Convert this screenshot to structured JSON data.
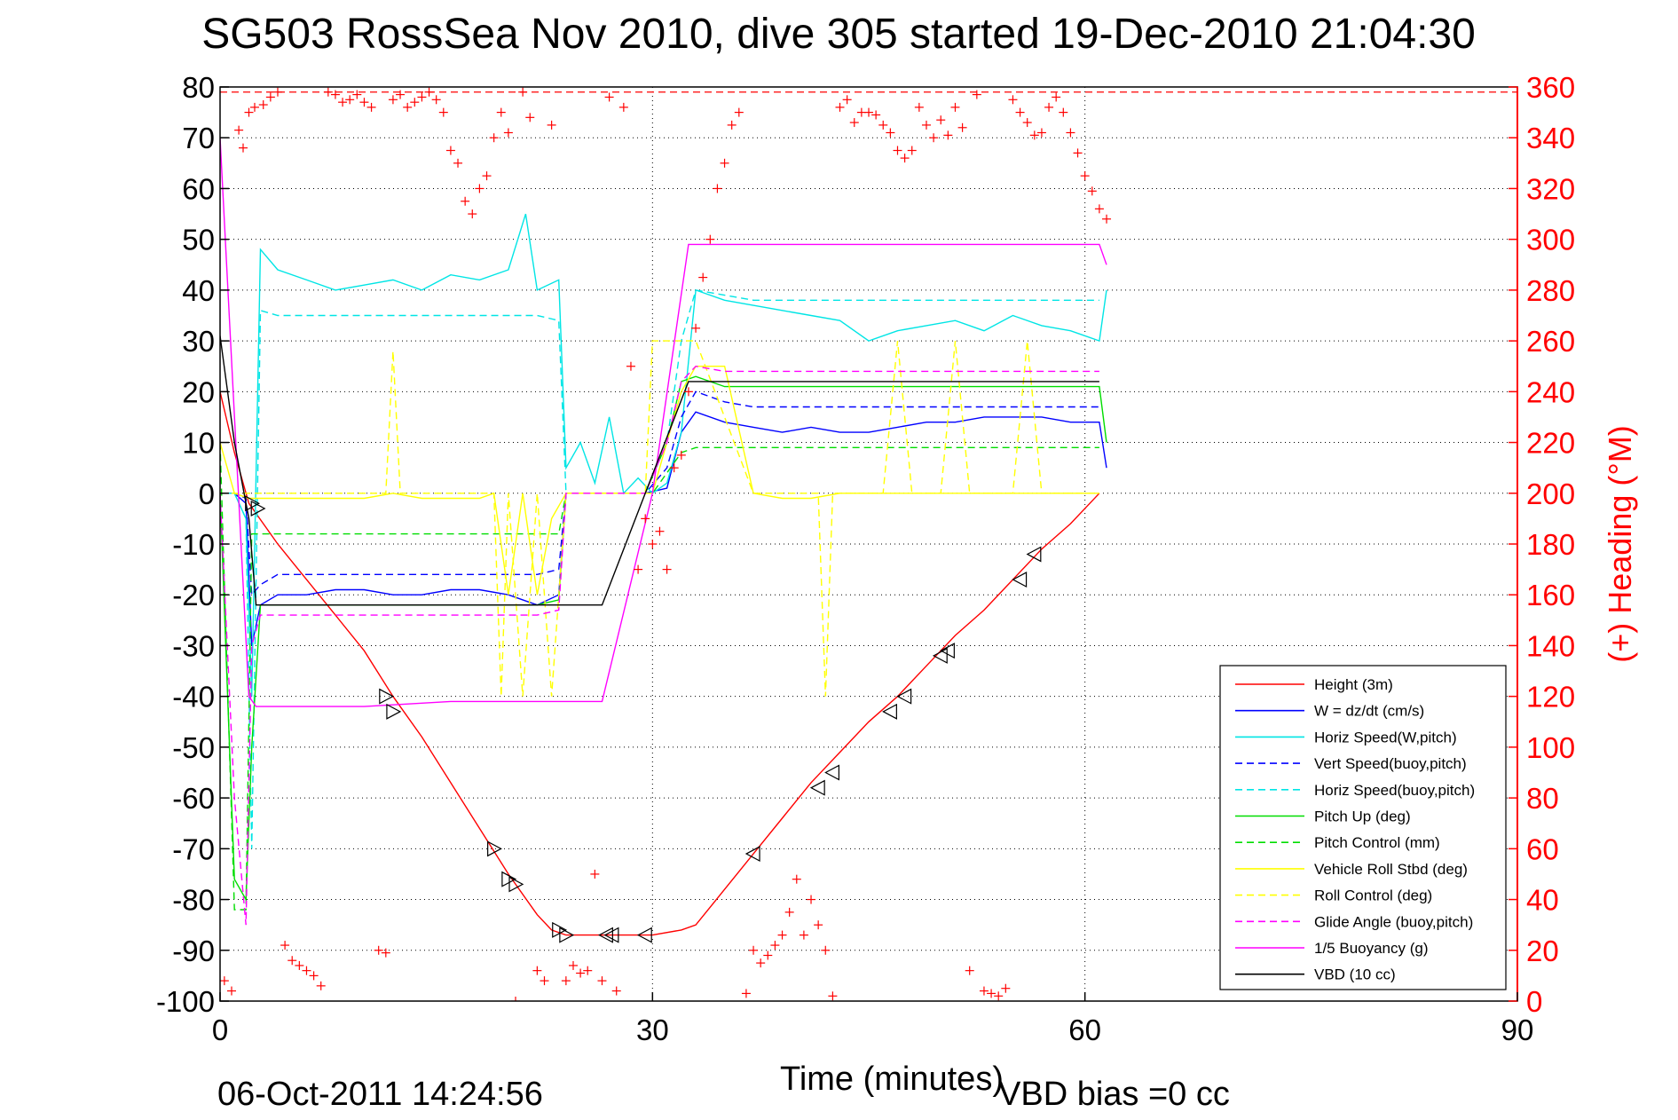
{
  "chart_data": {
    "type": "line",
    "title": "SG503 RossSea Nov 2010, dive 305 started 19-Dec-2010 21:04:30",
    "xlabel": "Time (minutes)",
    "ylabel": "",
    "ylabel_right": "(+) Heading (°M)",
    "footer_date": "06-Oct-2011 14:24:56",
    "footer_bias": "VBD bias =0 cc",
    "xlim": [
      0,
      90
    ],
    "ylim": [
      -100,
      80
    ],
    "ylim_right": [
      0,
      360
    ],
    "xticks": [
      "0",
      "30",
      "60",
      "90"
    ],
    "yticks": [
      "80",
      "70",
      "60",
      "50",
      "40",
      "30",
      "20",
      "10",
      "0",
      "-10",
      "-20",
      "-30",
      "-40",
      "-50",
      "-60",
      "-70",
      "-80",
      "-90",
      "-100"
    ],
    "yticks_right": [
      "360",
      "340",
      "320",
      "300",
      "280",
      "260",
      "240",
      "220",
      "200",
      "180",
      "160",
      "140",
      "120",
      "100",
      "80",
      "60",
      "40",
      "20",
      "0"
    ],
    "grid": true,
    "legend_position": "bottom-right",
    "colors": {
      "red": "#ff0000",
      "blue": "#0000ff",
      "cyan": "#00e5e5",
      "green": "#00dd00",
      "yellow": "#ffff00",
      "magenta": "#ff00ff",
      "black": "#000000"
    },
    "series": [
      {
        "name": "Height (3m)",
        "color": "#ff0000",
        "dash": false,
        "x": [
          0,
          1,
          2,
          4,
          6,
          8,
          10,
          12,
          14,
          16,
          18,
          20,
          22,
          23,
          24,
          26,
          28,
          30,
          32,
          33,
          35,
          37,
          39,
          41,
          43,
          45,
          47,
          49,
          51,
          53,
          55,
          57,
          59,
          61
        ],
        "y": [
          20,
          8,
          -2,
          -10,
          -17,
          -24,
          -31,
          -40,
          -48,
          -57,
          -66,
          -75,
          -83,
          -86,
          -87,
          -87,
          -87,
          -87,
          -86,
          -85,
          -78,
          -71,
          -64,
          -57,
          -51,
          -45,
          -40,
          -34,
          -28,
          -23,
          -17,
          -11,
          -6,
          0
        ]
      },
      {
        "name": "W = dz/dt (cm/s)",
        "color": "#0000ff",
        "dash": false,
        "x": [
          0,
          1,
          1.8,
          2.2,
          2.8,
          4,
          6,
          8,
          10,
          12,
          14,
          16,
          18,
          20,
          22,
          23.5,
          24,
          26,
          28,
          29.5,
          31,
          32,
          33,
          35,
          37,
          39,
          41,
          43,
          45,
          47,
          49,
          51,
          53,
          55,
          57,
          59,
          61,
          61.5
        ],
        "y": [
          0,
          0,
          -2,
          -30,
          -22,
          -20,
          -20,
          -19,
          -19,
          -20,
          -20,
          -19,
          -19,
          -20,
          -22,
          -20,
          0,
          0,
          0,
          0,
          1,
          12,
          16,
          14,
          13,
          12,
          13,
          12,
          12,
          13,
          14,
          14,
          15,
          15,
          15,
          14,
          14,
          5
        ]
      },
      {
        "name": "Horiz Speed(W,pitch)",
        "color": "#00e5e5",
        "dash": false,
        "x": [
          0,
          1,
          1.8,
          2.2,
          2.8,
          4,
          6,
          8,
          10,
          12,
          14,
          16,
          18,
          20,
          21.2,
          22,
          23.5,
          24,
          25,
          26,
          27,
          28,
          29,
          30,
          31,
          32,
          33,
          35,
          37,
          39,
          41,
          43,
          45,
          47,
          49,
          51,
          53,
          55,
          57,
          59,
          61,
          61.5
        ],
        "y": [
          0,
          0,
          -5,
          -40,
          48,
          44,
          42,
          40,
          41,
          42,
          40,
          43,
          42,
          44,
          55,
          40,
          42,
          5,
          10,
          2,
          15,
          0,
          3,
          0,
          2,
          12,
          40,
          38,
          37,
          36,
          35,
          34,
          30,
          32,
          33,
          34,
          32,
          35,
          33,
          32,
          30,
          40
        ]
      },
      {
        "name": "Vert Speed(buoy,pitch)",
        "color": "#0000ff",
        "dash": true,
        "x": [
          0,
          1,
          1.8,
          2.2,
          2.8,
          4,
          6,
          8,
          10,
          12,
          14,
          16,
          18,
          20,
          22,
          23.5,
          24,
          26,
          28,
          29.5,
          31,
          32,
          33,
          35,
          37,
          39,
          41,
          43,
          45,
          47,
          49,
          51,
          53,
          55,
          57,
          59,
          61
        ],
        "y": [
          0,
          0,
          -1,
          -20,
          -18,
          -16,
          -16,
          -16,
          -16,
          -16,
          -16,
          -16,
          -16,
          -16,
          -16,
          -15,
          0,
          0,
          0,
          0,
          5,
          15,
          20,
          18,
          17,
          17,
          17,
          17,
          17,
          17,
          17,
          17,
          17,
          17,
          17,
          17,
          17
        ]
      },
      {
        "name": "Horiz Speed(buoy,pitch)",
        "color": "#00e5e5",
        "dash": true,
        "x": [
          0,
          1,
          1.8,
          2.2,
          2.8,
          4,
          6,
          8,
          10,
          12,
          14,
          16,
          18,
          20,
          22,
          23.5,
          24,
          26,
          28,
          29.5,
          31,
          32,
          33,
          35,
          37,
          39,
          41,
          43,
          45,
          47,
          49,
          51,
          53,
          55,
          57,
          59,
          61
        ],
        "y": [
          0,
          0,
          -5,
          -70,
          36,
          35,
          35,
          35,
          35,
          35,
          35,
          35,
          35,
          35,
          35,
          34,
          0,
          0,
          0,
          0,
          10,
          30,
          40,
          39,
          38,
          38,
          38,
          38,
          38,
          38,
          38,
          38,
          38,
          38,
          38,
          38,
          38
        ]
      },
      {
        "name": "Pitch Up (deg)",
        "color": "#00dd00",
        "dash": false,
        "x": [
          0,
          1,
          1.8,
          2.2,
          2.8,
          4,
          6,
          8,
          10,
          12,
          14,
          16,
          18,
          20,
          22,
          23.5,
          24,
          26,
          28,
          29.5,
          31,
          32,
          33,
          35,
          37,
          39,
          41,
          43,
          45,
          47,
          49,
          51,
          53,
          55,
          57,
          59,
          61,
          61.5
        ],
        "y": [
          0,
          -76,
          -80,
          -50,
          -22,
          -22,
          -22,
          -22,
          -22,
          -22,
          -22,
          -22,
          -22,
          -22,
          -22,
          -21,
          0,
          0,
          0,
          0,
          10,
          22,
          23,
          21,
          21,
          21,
          21,
          21,
          21,
          21,
          21,
          21,
          21,
          21,
          21,
          21,
          21,
          10
        ]
      },
      {
        "name": "Pitch Control (mm)",
        "color": "#00dd00",
        "dash": true,
        "x": [
          0,
          1,
          1.8,
          2.2,
          2.8,
          4,
          10,
          16,
          22,
          23.5,
          24,
          26,
          28,
          30,
          32,
          33,
          40,
          50,
          55,
          61
        ],
        "y": [
          10,
          -82,
          -82,
          -8,
          -8,
          -8,
          -8,
          -8,
          -8,
          -8,
          0,
          0,
          0,
          0,
          8,
          9,
          9,
          9,
          9,
          9
        ]
      },
      {
        "name": "Vehicle Roll Stbd (deg)",
        "color": "#ffff00",
        "dash": false,
        "x": [
          0,
          1,
          2,
          4,
          6,
          8,
          10,
          12,
          14,
          16,
          18,
          19,
          20,
          21,
          22,
          23,
          24,
          26,
          28,
          30,
          32,
          33,
          35,
          37,
          39,
          41,
          43,
          45,
          47,
          49,
          51,
          53,
          55,
          57,
          59,
          61
        ],
        "y": [
          10,
          0,
          -1,
          -1,
          -1,
          -1,
          -1,
          0,
          -1,
          -1,
          -1,
          0,
          -20,
          0,
          -20,
          -5,
          0,
          0,
          0,
          0,
          20,
          25,
          25,
          0,
          -1,
          -1,
          0,
          0,
          0,
          0,
          0,
          0,
          0,
          0,
          0,
          0
        ]
      },
      {
        "name": "Roll Control (deg)",
        "color": "#ffff00",
        "dash": true,
        "x": [
          0,
          1,
          2,
          4,
          6,
          8,
          10,
          11.5,
          12,
          12.5,
          14,
          16,
          18,
          19,
          19.5,
          20,
          21,
          22,
          23,
          24,
          26,
          28,
          29.5,
          30,
          32,
          33,
          37,
          41.5,
          42,
          42.5,
          46,
          47,
          48,
          50,
          51,
          52,
          55,
          56,
          57,
          61
        ],
        "y": [
          0,
          0,
          0,
          0,
          0,
          0,
          0,
          0,
          28,
          0,
          0,
          0,
          0,
          0,
          -40,
          0,
          -40,
          0,
          -40,
          0,
          0,
          0,
          0,
          30,
          30,
          30,
          0,
          0,
          -40,
          0,
          0,
          30,
          0,
          0,
          30,
          0,
          0,
          30,
          0,
          0
        ]
      },
      {
        "name": "Glide Angle (buoy,pitch)",
        "color": "#ff00ff",
        "dash": true,
        "x": [
          0,
          1,
          1.8,
          2.2,
          2.8,
          4,
          6,
          8,
          10,
          12,
          14,
          16,
          18,
          20,
          22,
          23.5,
          24,
          26,
          28,
          29.5,
          31,
          32,
          33,
          35,
          37,
          39,
          41,
          43,
          45,
          47,
          49,
          51,
          53,
          55,
          57,
          59,
          61
        ],
        "y": [
          0,
          -60,
          -85,
          -30,
          -24,
          -24,
          -24,
          -24,
          -24,
          -24,
          -24,
          -24,
          -24,
          -24,
          -24,
          -23,
          0,
          0,
          0,
          0,
          10,
          22,
          25,
          24,
          24,
          24,
          24,
          24,
          24,
          24,
          24,
          24,
          24,
          24,
          24,
          24,
          24
        ]
      },
      {
        "name": "1/5 Buoyancy (g)",
        "color": "#ff00ff",
        "dash": false,
        "x": [
          0,
          2,
          2.5,
          4,
          10,
          16,
          22,
          26.5,
          30,
          32.5,
          33,
          40,
          50,
          61,
          61.5
        ],
        "y": [
          70,
          -40,
          -42,
          -42,
          -42,
          -41,
          -41,
          -41,
          0,
          49,
          49,
          49,
          49,
          49,
          45
        ]
      },
      {
        "name": "VBD (10 cc)",
        "color": "#000000",
        "dash": false,
        "x": [
          0,
          1,
          2,
          2.5,
          4,
          10,
          20,
          26.5,
          29.5,
          32.5,
          33,
          40,
          50,
          61
        ],
        "y": [
          31,
          10,
          -5,
          -22,
          -22,
          -22,
          -22,
          -22,
          0,
          22,
          22,
          22,
          22,
          22
        ]
      }
    ],
    "heading_points": {
      "name": "(+) Heading (°M)",
      "color": "#ff0000",
      "x": [
        0.3,
        0.8,
        1.3,
        1.6,
        2.0,
        2.4,
        3.0,
        3.5,
        4.0,
        4.5,
        5.0,
        5.5,
        6.0,
        6.5,
        7.0,
        7.5,
        8.0,
        8.5,
        9.0,
        9.5,
        10.0,
        10.5,
        11.0,
        11.5,
        12.0,
        12.5,
        13.0,
        13.5,
        14.0,
        14.5,
        15.0,
        15.5,
        16.0,
        16.5,
        17.0,
        17.5,
        18.0,
        18.5,
        19.0,
        19.5,
        20.0,
        20.5,
        21.0,
        21.5,
        22.0,
        22.5,
        23.0,
        24.0,
        24.5,
        25.0,
        25.5,
        26.0,
        26.5,
        27.0,
        27.5,
        28.0,
        28.5,
        29.0,
        29.5,
        30.0,
        30.5,
        31.0,
        31.5,
        32.0,
        32.5,
        33.0,
        33.5,
        34.0,
        34.5,
        35.0,
        35.5,
        36.0,
        36.5,
        37.0,
        37.5,
        38.0,
        38.5,
        39.0,
        39.5,
        40.0,
        40.5,
        41.0,
        41.5,
        42.0,
        42.5,
        43.0,
        43.5,
        44.0,
        44.5,
        45.0,
        45.5,
        46.0,
        46.5,
        47.0,
        47.5,
        48.0,
        48.5,
        49.0,
        49.5,
        50.0,
        50.5,
        51.0,
        51.5,
        52.0,
        52.5,
        53.0,
        53.5,
        54.0,
        54.5,
        55.0,
        55.5,
        56.0,
        56.5,
        57.0,
        57.5,
        58.0,
        58.5,
        59.0,
        59.5,
        60.0,
        60.5,
        61.0,
        61.5
      ],
      "y": [
        8,
        4,
        343,
        336,
        350,
        352,
        353,
        356,
        358,
        22,
        16,
        14,
        12,
        10,
        6,
        358,
        357,
        354,
        355,
        357,
        354,
        352,
        20,
        19,
        355,
        357,
        352,
        354,
        356,
        358,
        355,
        350,
        335,
        330,
        315,
        310,
        320,
        325,
        340,
        350,
        342,
        0,
        358,
        348,
        12,
        8,
        345,
        8,
        14,
        11,
        12,
        50,
        8,
        356,
        4,
        352,
        250,
        170,
        190,
        180,
        185,
        170,
        210,
        215,
        240,
        265,
        285,
        300,
        320,
        330,
        345,
        350,
        3,
        20,
        15,
        18,
        22,
        26,
        35,
        48,
        26,
        40,
        30,
        20,
        2,
        352,
        355,
        346,
        350,
        350,
        349,
        345,
        342,
        335,
        332,
        335,
        352,
        345,
        340,
        347,
        341,
        352,
        344,
        12,
        357,
        4,
        3,
        2,
        5,
        355,
        350,
        346,
        341,
        342,
        352,
        356,
        350,
        342,
        334,
        325,
        319,
        312,
        308
      ]
    },
    "heading_reference_y": 358,
    "markers_right": [
      {
        "x": 2.2,
        "y": -2
      },
      {
        "x": 2.6,
        "y": -3
      },
      {
        "x": 11.5,
        "y": -40
      },
      {
        "x": 12.0,
        "y": -43
      },
      {
        "x": 19.0,
        "y": -70
      },
      {
        "x": 20.0,
        "y": -76
      },
      {
        "x": 20.5,
        "y": -77
      },
      {
        "x": 23.5,
        "y": -86
      },
      {
        "x": 24.0,
        "y": -87
      }
    ],
    "markers_left": [
      {
        "x": 26.8,
        "y": -87
      },
      {
        "x": 27.2,
        "y": -87
      },
      {
        "x": 29.5,
        "y": -87
      },
      {
        "x": 37.0,
        "y": -71
      },
      {
        "x": 41.5,
        "y": -58
      },
      {
        "x": 42.5,
        "y": -55
      },
      {
        "x": 46.5,
        "y": -43
      },
      {
        "x": 47.5,
        "y": -40
      },
      {
        "x": 50.0,
        "y": -32
      },
      {
        "x": 50.5,
        "y": -31
      },
      {
        "x": 55.5,
        "y": -17
      },
      {
        "x": 56.5,
        "y": -12
      }
    ]
  }
}
